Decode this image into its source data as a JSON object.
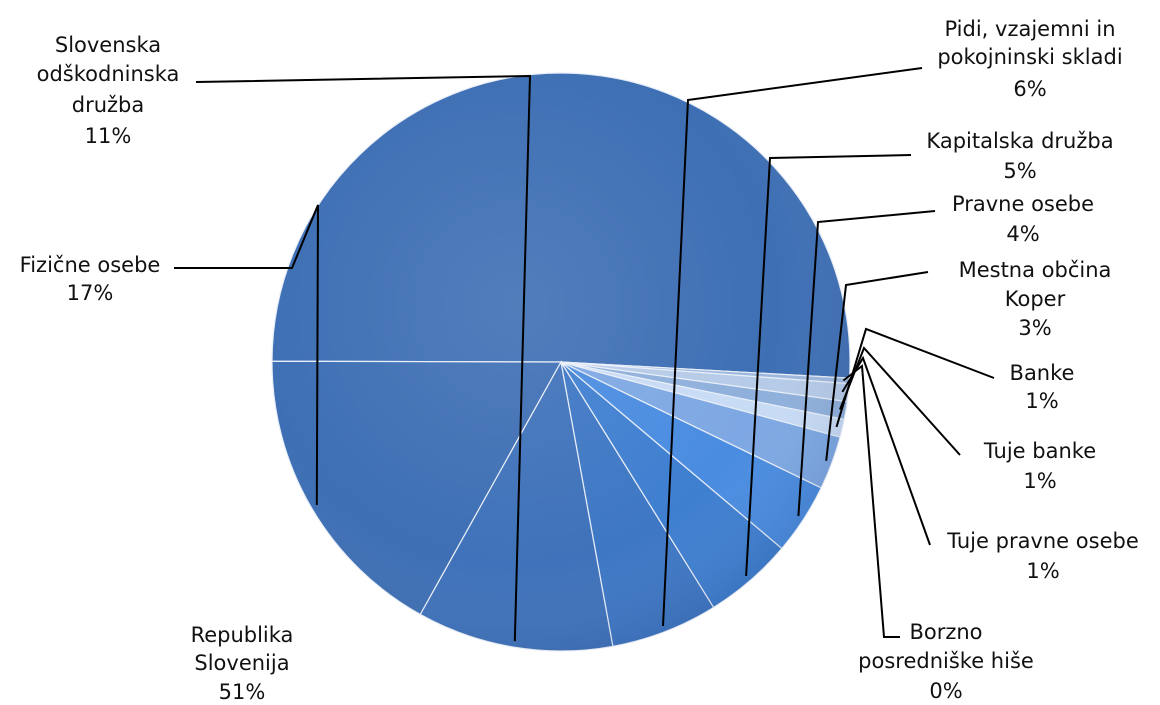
{
  "chart_data": {
    "type": "pie",
    "title": "",
    "slices": [
      {
        "name": "Republika Slovenija",
        "label_lines": [
          "Republika",
          "Slovenija"
        ],
        "value": 51,
        "value_label": "51%",
        "color": "#3e6fb4"
      },
      {
        "name": "Fizične osebe",
        "label_lines": [
          "Fizične osebe"
        ],
        "value": 17,
        "value_label": "17%",
        "color": "#3e6fb4"
      },
      {
        "name": "Slovenska odškodninska družba",
        "label_lines": [
          "Slovenska",
          "odškodninska",
          "družba"
        ],
        "value": 11,
        "value_label": "11%",
        "color": "#3f72ba"
      },
      {
        "name": "Pidi, vzajemni in pokojninski skladi",
        "label_lines": [
          "Pidi, vzajemni in",
          "pokojninski skladi"
        ],
        "value": 6,
        "value_label": "6%",
        "color": "#3e77c4"
      },
      {
        "name": "Kapitalska družba",
        "label_lines": [
          "Kapitalska družba"
        ],
        "value": 5,
        "value_label": "5%",
        "color": "#3f7fd0"
      },
      {
        "name": "Pravne osebe",
        "label_lines": [
          "Pravne osebe"
        ],
        "value": 4,
        "value_label": "4%",
        "color": "#4a8ce0"
      },
      {
        "name": "Mestna občina Koper",
        "label_lines": [
          "Mestna občina",
          "Koper"
        ],
        "value": 3,
        "value_label": "3%",
        "color": "#7ea8e3"
      },
      {
        "name": "Banke",
        "label_lines": [
          "Banke"
        ],
        "value": 1,
        "value_label": "1%",
        "color": "#c8dbf5"
      },
      {
        "name": "Tuje banke",
        "label_lines": [
          "Tuje banke"
        ],
        "value": 1,
        "value_label": "1%",
        "color": "#8fb0dc"
      },
      {
        "name": "Tuje pravne osebe",
        "label_lines": [
          "Tuje pravne osebe"
        ],
        "value": 1,
        "value_label": "1%",
        "color": "#b6cbe8"
      },
      {
        "name": "Borzno posredniške hiše",
        "label_lines": [
          "Borzno",
          "posredniške hiše"
        ],
        "value": 0.3,
        "value_label": "0%",
        "color": "#9db7dd"
      }
    ]
  }
}
